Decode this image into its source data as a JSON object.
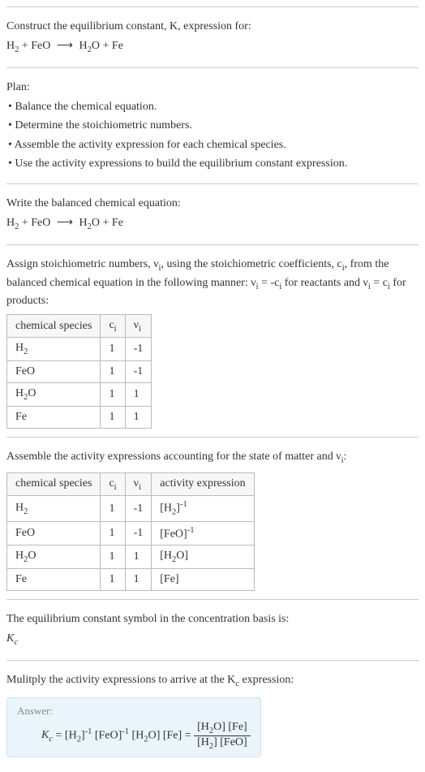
{
  "intro": {
    "line1": "Construct the equilibrium constant, K, expression for:",
    "eqn_left": "H",
    "eqn_sub2a": "2",
    "plus1": " + FeO ",
    "arrow": "⟶",
    "eqn_right1": " H",
    "eqn_sub2b": "2",
    "eqn_right2": "O + Fe"
  },
  "plan": {
    "title": "Plan:",
    "b1": "• Balance the chemical equation.",
    "b2": "• Determine the stoichiometric numbers.",
    "b3": "• Assemble the activity expression for each chemical species.",
    "b4": "• Use the activity expressions to build the equilibrium constant expression."
  },
  "balanced": {
    "title": "Write the balanced chemical equation:",
    "h": "H",
    "s2a": "2",
    "mid1": " + FeO ",
    "arrow": "⟶",
    "mid2": " H",
    "s2b": "2",
    "end": "O + Fe"
  },
  "assign": {
    "text1": "Assign stoichiometric numbers, ν",
    "subi1": "i",
    "text2": ", using the stoichiometric coefficients, c",
    "subi2": "i",
    "text3": ", from the balanced chemical equation in the following manner: ν",
    "subi3": "i",
    "text4": " = -c",
    "subi4": "i",
    "text5": " for reactants and ν",
    "subi5": "i",
    "text6": " = c",
    "subi6": "i",
    "text7": " for products:",
    "table": {
      "h1": "chemical species",
      "h2a": "c",
      "h2i": "i",
      "h3a": "ν",
      "h3i": "i",
      "rows": [
        {
          "sp_a": "H",
          "sp_sub": "2",
          "sp_b": "",
          "c": "1",
          "v": "-1"
        },
        {
          "sp_a": "FeO",
          "sp_sub": "",
          "sp_b": "",
          "c": "1",
          "v": "-1"
        },
        {
          "sp_a": "H",
          "sp_sub": "2",
          "sp_b": "O",
          "c": "1",
          "v": "1"
        },
        {
          "sp_a": "Fe",
          "sp_sub": "",
          "sp_b": "",
          "c": "1",
          "v": "1"
        }
      ]
    }
  },
  "activity": {
    "text1": "Assemble the activity expressions accounting for the state of matter and ν",
    "subi": "i",
    "text2": ":",
    "table": {
      "h1": "chemical species",
      "h2a": "c",
      "h2i": "i",
      "h3a": "ν",
      "h3i": "i",
      "h4": "activity expression",
      "rows": [
        {
          "sp_a": "H",
          "sp_sub": "2",
          "sp_b": "",
          "c": "1",
          "v": "-1",
          "ae_pre": "[H",
          "ae_sub": "2",
          "ae_mid": "]",
          "ae_sup": "-1",
          "ae_post": ""
        },
        {
          "sp_a": "FeO",
          "sp_sub": "",
          "sp_b": "",
          "c": "1",
          "v": "-1",
          "ae_pre": "[FeO]",
          "ae_sub": "",
          "ae_mid": "",
          "ae_sup": "-1",
          "ae_post": ""
        },
        {
          "sp_a": "H",
          "sp_sub": "2",
          "sp_b": "O",
          "c": "1",
          "v": "1",
          "ae_pre": "[H",
          "ae_sub": "2",
          "ae_mid": "O]",
          "ae_sup": "",
          "ae_post": ""
        },
        {
          "sp_a": "Fe",
          "sp_sub": "",
          "sp_b": "",
          "c": "1",
          "v": "1",
          "ae_pre": "[Fe]",
          "ae_sub": "",
          "ae_mid": "",
          "ae_sup": "",
          "ae_post": ""
        }
      ]
    }
  },
  "symbol": {
    "line1": "The equilibrium constant symbol in the concentration basis is:",
    "k": "K",
    "c": "c"
  },
  "multiply": {
    "line1a": "Mulitply the activity expressions to arrive at the K",
    "subc": "c",
    "line1b": " expression:"
  },
  "answer": {
    "label": "Answer:",
    "k": "K",
    "kc": "c",
    "eq": " = [H",
    "s2a": "2",
    "p1": "]",
    "m1": "-1",
    "p2": " [FeO]",
    "m2": "-1",
    "p3": " [H",
    "s2b": "2",
    "p4": "O] [Fe] = ",
    "num_a": "[H",
    "num_s2": "2",
    "num_b": "O] [Fe]",
    "den_a": "[H",
    "den_s2": "2",
    "den_b": "] [FeO]"
  }
}
